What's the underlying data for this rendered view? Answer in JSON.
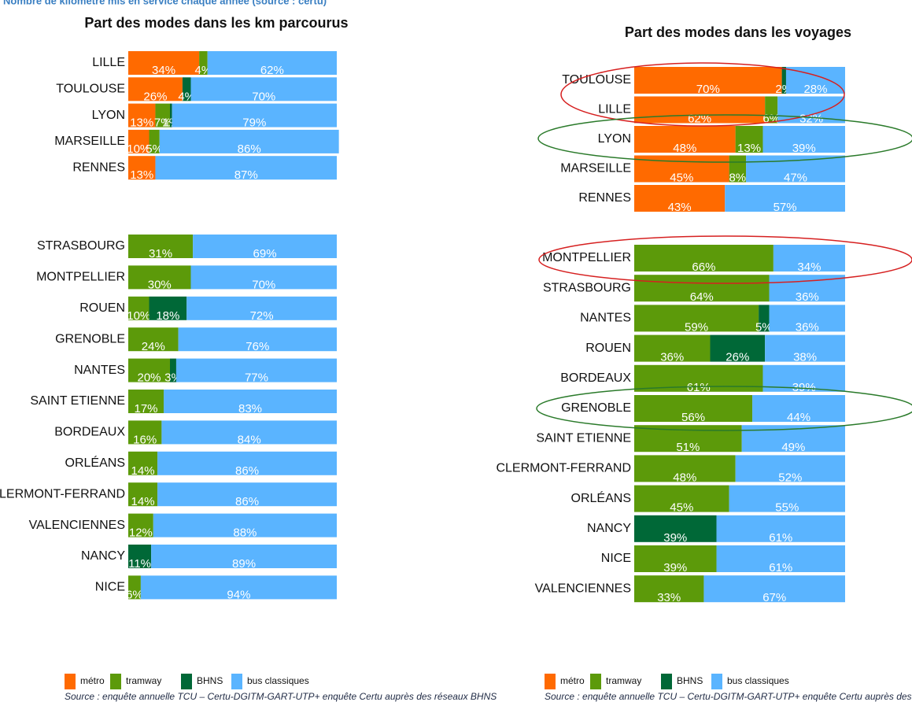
{
  "caption": "Nombre de kilomètre mis en service chaque année (source : certu)",
  "chart_data": [
    {
      "type": "bar",
      "orientation": "horizontal",
      "stacked": true,
      "title": "Part des modes dans les km parcourus",
      "categories": [
        "LILLE",
        "TOULOUSE",
        "LYON",
        "MARSEILLE",
        "RENNES",
        "STRASBOURG",
        "MONTPELLIER",
        "ROUEN",
        "GRENOBLE",
        "NANTES",
        "SAINT ETIENNE",
        "BORDEAUX",
        "ORLÉANS",
        "CLERMONT-FERRAND",
        "VALENCIENNES",
        "NANCY",
        "NICE"
      ],
      "xlim": [
        0,
        100
      ],
      "series": [
        {
          "name": "métro",
          "color": "#ff6a00",
          "values": [
            34,
            26,
            13,
            10,
            13,
            0,
            0,
            0,
            0,
            0,
            0,
            0,
            0,
            0,
            0,
            0,
            0
          ],
          "value_labels": [
            "34%",
            "26%",
            "13%",
            "10%",
            "13%",
            null,
            null,
            null,
            null,
            null,
            null,
            null,
            null,
            null,
            null,
            null,
            null
          ]
        },
        {
          "name": "tramway",
          "color": "#5c9a0a",
          "values": [
            4,
            0,
            7,
            5,
            0,
            31,
            30,
            10,
            24,
            20,
            17,
            16,
            14,
            14,
            12,
            0,
            6
          ],
          "value_labels": [
            "4%",
            null,
            "7%",
            "5%",
            null,
            "31%",
            "30%",
            "10%",
            "24%",
            "20%",
            "17%",
            "16%",
            "14%",
            "14%",
            "12%",
            null,
            "6%"
          ]
        },
        {
          "name": "BHNS",
          "color": "#006837",
          "values": [
            0,
            4,
            1,
            0,
            0,
            0,
            0,
            18,
            0,
            3,
            0,
            0,
            0,
            0,
            0,
            11,
            0
          ],
          "value_labels": [
            null,
            "4%",
            "1%",
            null,
            null,
            null,
            null,
            "18%",
            null,
            "3%",
            null,
            null,
            null,
            null,
            null,
            "11%",
            null
          ]
        },
        {
          "name": "bus classiques",
          "color": "#5ab4ff",
          "values": [
            62,
            70,
            79,
            86,
            87,
            69,
            70,
            72,
            76,
            77,
            83,
            84,
            86,
            86,
            88,
            89,
            94
          ],
          "value_labels": [
            "62%",
            "70%",
            "79%",
            "86%",
            "87%",
            "69%",
            "70%",
            "72%",
            "76%",
            "77%",
            "83%",
            "84%",
            "86%",
            "86%",
            "88%",
            "89%",
            "94%"
          ]
        }
      ],
      "source": "Source : enquête annuelle TCU – Certu-DGITM-GART-UTP+ enquête Certu auprès des réseaux BHNS"
    },
    {
      "type": "bar",
      "orientation": "horizontal",
      "stacked": true,
      "title": "Part des modes dans les voyages",
      "categories": [
        "TOULOUSE",
        "LILLE",
        "LYON",
        "MARSEILLE",
        "RENNES",
        "MONTPELLIER",
        "STRASBOURG",
        "NANTES",
        "ROUEN",
        "BORDEAUX",
        "GRENOBLE",
        "SAINT ETIENNE",
        "CLERMONT-FERRAND",
        "ORLÉANS",
        "NANCY",
        "NICE",
        "VALENCIENNES"
      ],
      "xlim": [
        0,
        100
      ],
      "series": [
        {
          "name": "métro",
          "color": "#ff6a00",
          "values": [
            70,
            62,
            48,
            45,
            43,
            0,
            0,
            0,
            0,
            0,
            0,
            0,
            0,
            0,
            0,
            0,
            0
          ],
          "value_labels": [
            "70%",
            "62%",
            "48%",
            "45%",
            "43%",
            null,
            null,
            null,
            null,
            null,
            null,
            null,
            null,
            null,
            null,
            null,
            null
          ]
        },
        {
          "name": "tramway",
          "color": "#5c9a0a",
          "values": [
            0,
            6,
            13,
            8,
            0,
            66,
            64,
            59,
            36,
            61,
            56,
            51,
            48,
            45,
            0,
            39,
            33
          ],
          "value_labels": [
            null,
            "6%",
            "13%",
            "8%",
            null,
            "66%",
            "64%",
            "59%",
            "36%",
            "61%",
            "56%",
            "51%",
            "48%",
            "45%",
            null,
            "39%",
            "33%"
          ]
        },
        {
          "name": "BHNS",
          "color": "#006837",
          "values": [
            2,
            0,
            0,
            0,
            0,
            0,
            0,
            5,
            26,
            0,
            0,
            0,
            0,
            0,
            39,
            0,
            0
          ],
          "value_labels": [
            "2%",
            null,
            null,
            null,
            null,
            null,
            null,
            "5%",
            "26%",
            null,
            null,
            null,
            null,
            null,
            "39%",
            null,
            null
          ]
        },
        {
          "name": "bus classiques",
          "color": "#5ab4ff",
          "values": [
            28,
            32,
            39,
            47,
            57,
            34,
            36,
            36,
            38,
            39,
            44,
            49,
            52,
            55,
            61,
            61,
            67
          ],
          "value_labels": [
            "28%",
            "32%",
            "39%",
            "47%",
            "57%",
            "34%",
            "36%",
            "36%",
            "38%",
            "39%",
            "44%",
            "49%",
            "52%",
            "55%",
            "61%",
            "61%",
            "67%"
          ]
        }
      ],
      "source": "Source : enquête annuelle TCU – Certu-DGITM-GART-UTP+ enquête Certu auprès des réseaux BHNS"
    }
  ]
}
